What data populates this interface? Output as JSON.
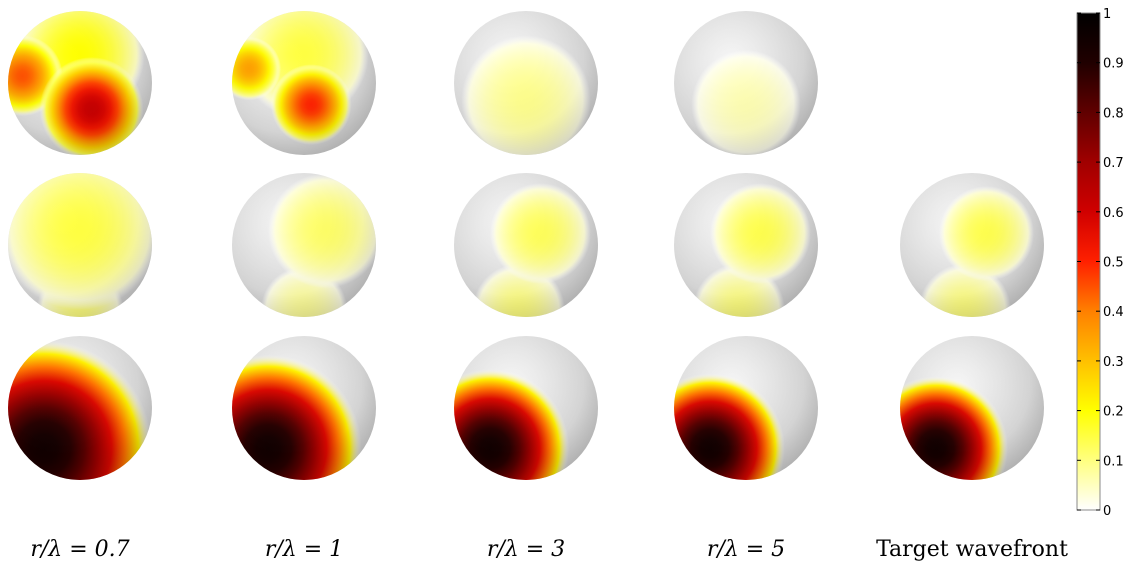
{
  "chart_data": {
    "type": "heatmap",
    "description_kind": "sphere-surface-maps",
    "columns": [
      "r/λ = 0.7",
      "r/λ = 1",
      "r/λ = 3",
      "r/λ = 5",
      "Target wavefront"
    ],
    "rows": 3,
    "colorbar": {
      "min": 0,
      "max": 1,
      "ticks": [
        0,
        0.1,
        0.2,
        0.3,
        0.4,
        0.5,
        0.6,
        0.7,
        0.8,
        0.9,
        1
      ],
      "tick_labels": [
        "0",
        "0.1",
        "0.2",
        "0.3",
        "0.4",
        "0.5",
        "0.6",
        "0.7",
        "0.8",
        "0.9",
        "1"
      ],
      "colormap": [
        "#ffffff",
        "#ffff80",
        "#ffff00",
        "#ffc000",
        "#ff8000",
        "#ff2000",
        "#d00000",
        "#a00000",
        "#600000",
        "#200000",
        "#000000"
      ]
    },
    "panels": [
      [
        {
          "blobs": [
            {
              "u": 0.58,
              "v": 0.68,
              "r": 0.36,
              "val": 0.62
            },
            {
              "u": 0.1,
              "v": 0.45,
              "r": 0.28,
              "val": 0.45
            },
            {
              "u": 0.5,
              "v": 0.3,
              "r": 0.45,
              "val": 0.2
            }
          ]
        },
        {
          "blobs": [
            {
              "u": 0.55,
              "v": 0.65,
              "r": 0.28,
              "val": 0.5
            },
            {
              "u": 0.12,
              "v": 0.4,
              "r": 0.22,
              "val": 0.35
            },
            {
              "u": 0.5,
              "v": 0.3,
              "r": 0.45,
              "val": 0.15
            }
          ]
        },
        {
          "blobs": [
            {
              "u": 0.5,
              "v": 0.62,
              "r": 0.45,
              "val": 0.09
            }
          ]
        },
        {
          "blobs": [
            {
              "u": 0.5,
              "v": 0.65,
              "r": 0.38,
              "val": 0.06
            }
          ]
        },
        null
      ],
      [
        {
          "blobs": [
            {
              "u": 0.5,
              "v": 0.4,
              "r": 0.55,
              "val": 0.15
            },
            {
              "u": 0.5,
              "v": 0.95,
              "r": 0.3,
              "val": 0.1
            }
          ]
        },
        {
          "blobs": [
            {
              "u": 0.65,
              "v": 0.4,
              "r": 0.4,
              "val": 0.12
            },
            {
              "u": 0.5,
              "v": 0.95,
              "r": 0.3,
              "val": 0.08
            }
          ]
        },
        {
          "blobs": [
            {
              "u": 0.6,
              "v": 0.42,
              "r": 0.35,
              "val": 0.13
            },
            {
              "u": 0.45,
              "v": 0.95,
              "r": 0.32,
              "val": 0.1
            }
          ]
        },
        {
          "blobs": [
            {
              "u": 0.6,
              "v": 0.42,
              "r": 0.35,
              "val": 0.14
            },
            {
              "u": 0.45,
              "v": 0.95,
              "r": 0.32,
              "val": 0.1
            }
          ]
        },
        {
          "blobs": [
            {
              "u": 0.6,
              "v": 0.42,
              "r": 0.33,
              "val": 0.14
            },
            {
              "u": 0.45,
              "v": 0.95,
              "r": 0.32,
              "val": 0.1
            }
          ]
        }
      ],
      [
        {
          "blobs": [
            {
              "u": 0.25,
              "v": 0.78,
              "r": 0.75,
              "val": 0.95
            }
          ]
        },
        {
          "blobs": [
            {
              "u": 0.25,
              "v": 0.78,
              "r": 0.65,
              "val": 0.95
            }
          ]
        },
        {
          "blobs": [
            {
              "u": 0.25,
              "v": 0.78,
              "r": 0.55,
              "val": 0.95
            }
          ]
        },
        {
          "blobs": [
            {
              "u": 0.25,
              "v": 0.78,
              "r": 0.52,
              "val": 0.95
            }
          ]
        },
        {
          "blobs": [
            {
              "u": 0.25,
              "v": 0.78,
              "r": 0.5,
              "val": 0.95
            }
          ]
        }
      ]
    ]
  }
}
